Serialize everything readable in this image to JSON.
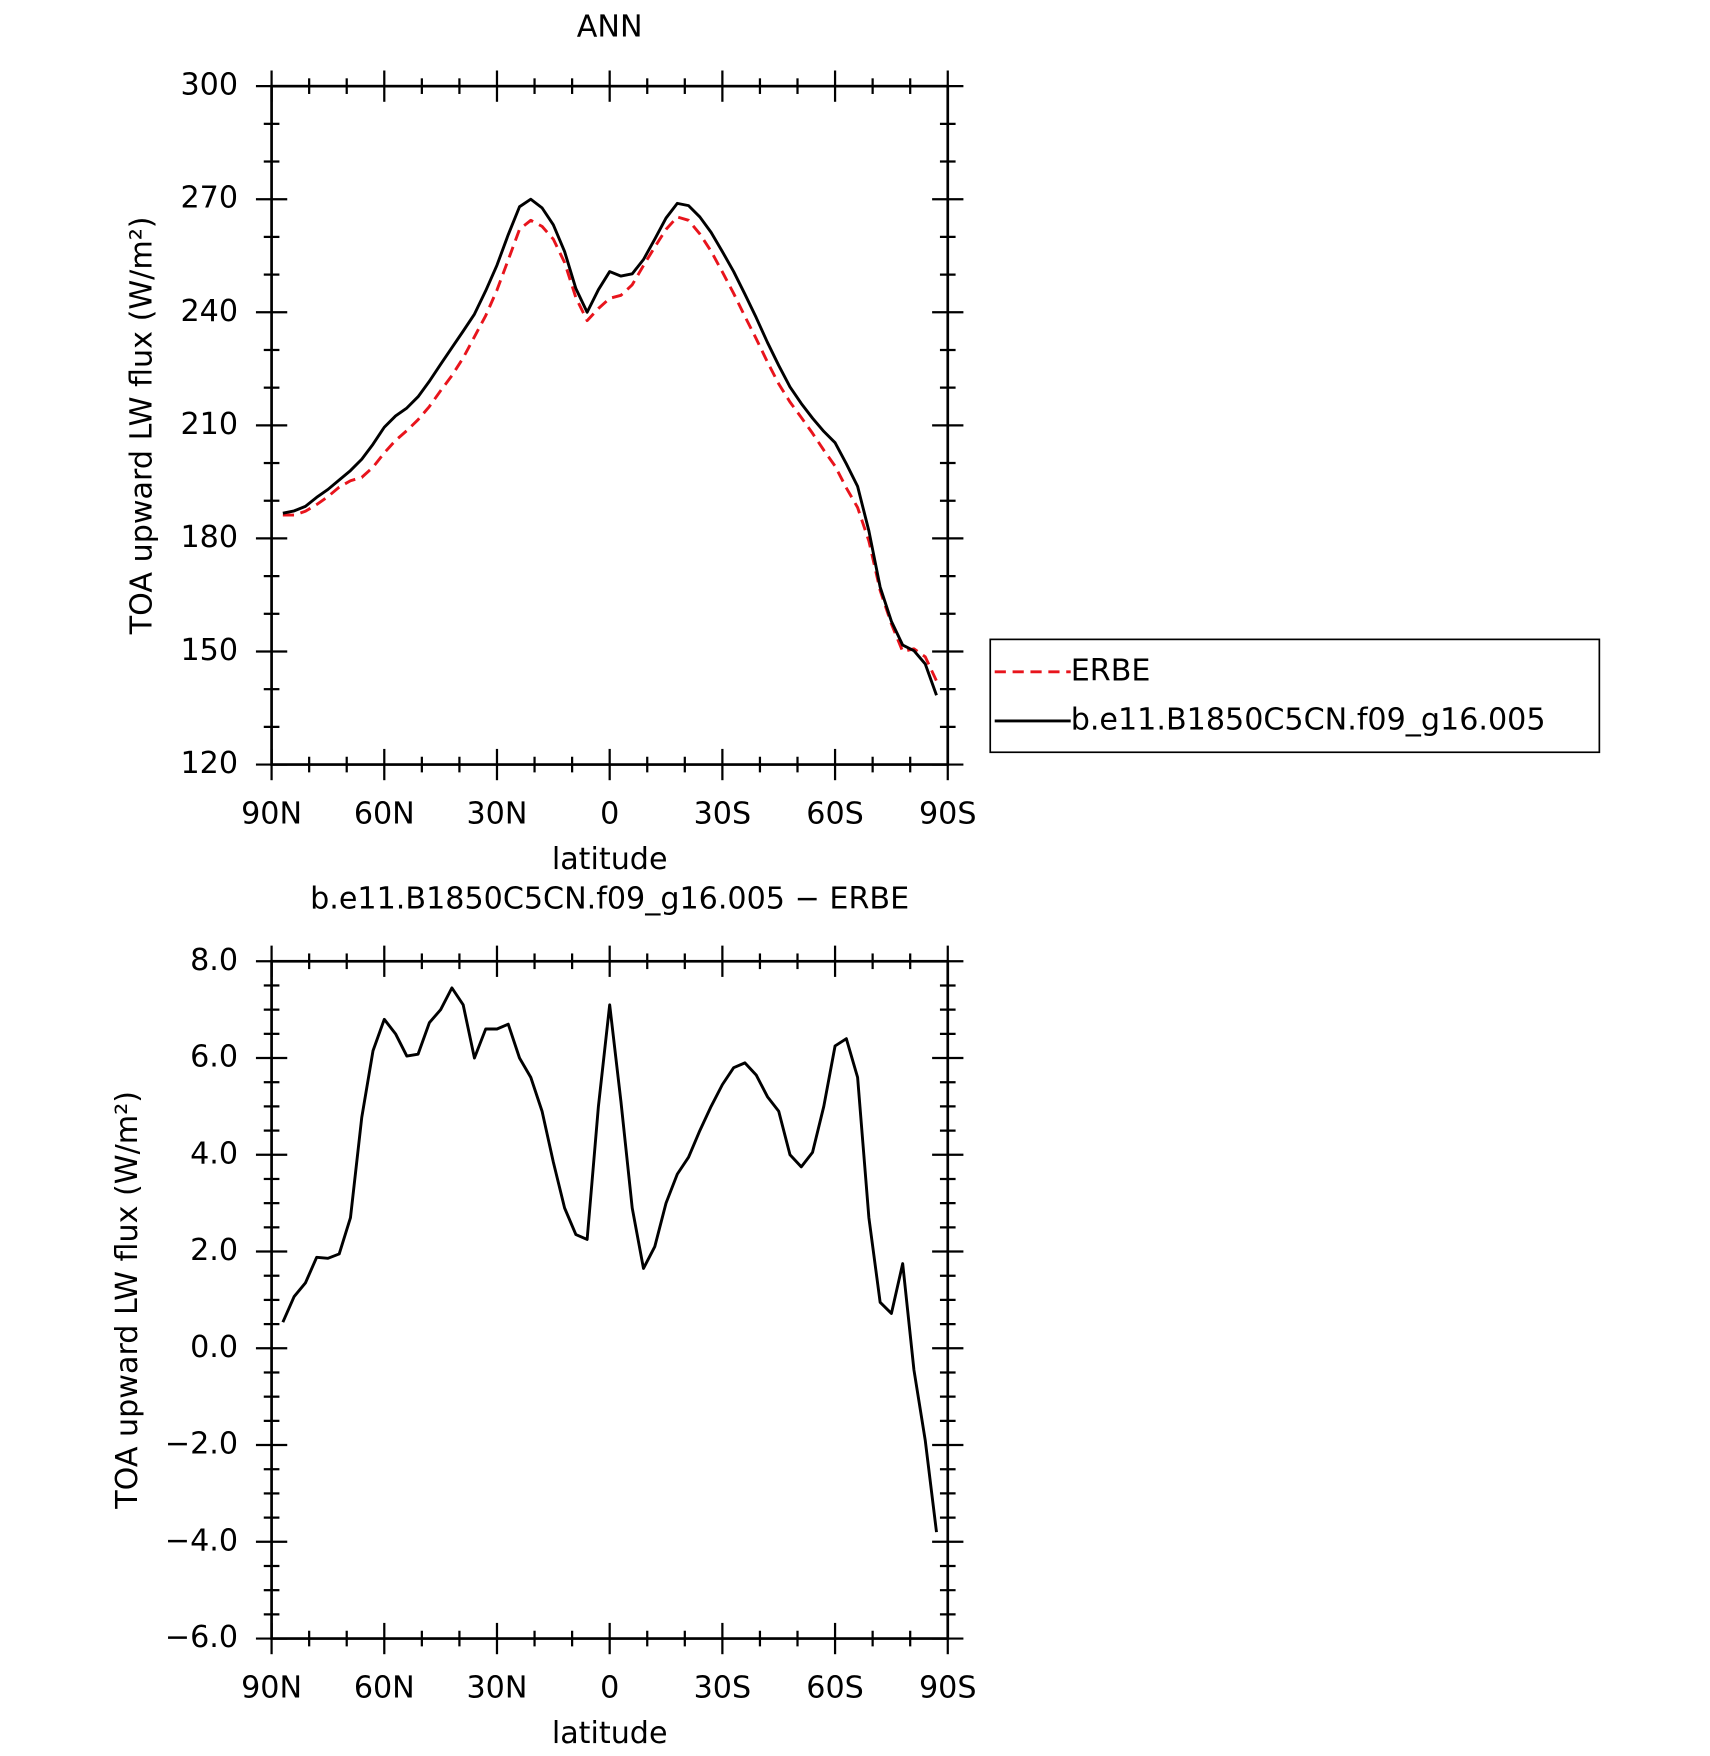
{
  "chart_data": [
    {
      "type": "line",
      "title": "ANN",
      "x_label": "latitude",
      "y_label": "TOA upward LW flux (W/m²)",
      "x": [
        87,
        84,
        81,
        78,
        75,
        72,
        69,
        66,
        63,
        60,
        57,
        54,
        51,
        48,
        45,
        42,
        39,
        36,
        33,
        30,
        27,
        24,
        21,
        18,
        15,
        12,
        9,
        6,
        3,
        0,
        -3,
        -6,
        -9,
        -12,
        -15,
        -18,
        -21,
        -24,
        -27,
        -30,
        -33,
        -36,
        -39,
        -42,
        -45,
        -48,
        -51,
        -54,
        -57,
        -60,
        -63,
        -66,
        -69,
        -72,
        -75,
        -78,
        -81,
        -84,
        -87
      ],
      "series": [
        {
          "name": "ERBE",
          "color": "#e8141c",
          "style": "dashed",
          "values": [
            186.2,
            186.2,
            187.2,
            189.0,
            191.1,
            193.6,
            195.3,
            196.2,
            198.9,
            202.7,
            206.0,
            208.6,
            211.5,
            215.0,
            219.2,
            223.2,
            227.9,
            233.5,
            239.1,
            245.9,
            253.9,
            262.0,
            264.4,
            262.8,
            259.4,
            253.2,
            243.9,
            237.8,
            241.0,
            243.7,
            244.5,
            247.3,
            252.4,
            257.3,
            262.0,
            265.3,
            264.4,
            260.8,
            256.2,
            250.7,
            245.0,
            238.9,
            233.0,
            226.8,
            221.0,
            216.2,
            212.1,
            207.9,
            203.4,
            199.2,
            193.4,
            188.2,
            179.3,
            166.2,
            157.3,
            150.0,
            150.7,
            148.6,
            142.2
          ]
        },
        {
          "name": "b.e11.B1850C5CN.f09_g16.005",
          "color": "#000000",
          "style": "solid",
          "values": [
            186.7,
            187.3,
            188.5,
            190.9,
            193,
            195.5,
            198,
            201,
            205,
            209.5,
            212.5,
            214.6,
            217.6,
            221.7,
            226.2,
            230.6,
            235,
            239.5,
            245.7,
            252.5,
            260.6,
            268,
            270,
            267.7,
            263.2,
            256.1,
            246.3,
            240,
            246,
            250.8,
            249.6,
            250.2,
            254,
            259.4,
            265,
            268.9,
            268.3,
            265.3,
            261.2,
            256.1,
            250.8,
            244.8,
            238.6,
            232,
            225.9,
            220.2,
            215.8,
            211.9,
            208.4,
            205.4,
            199.8,
            193.8,
            182,
            167.1,
            158,
            151.7,
            150.2,
            146.7,
            138.4
          ]
        }
      ],
      "xlim": [
        90,
        -90
      ],
      "xticks": [
        {
          "value": 90,
          "label": "90N"
        },
        {
          "value": 60,
          "label": "60N"
        },
        {
          "value": 30,
          "label": "30N"
        },
        0,
        {
          "value": -30,
          "label": "30S"
        },
        {
          "value": -60,
          "label": "60S"
        },
        {
          "value": -90,
          "label": "90S"
        }
      ],
      "ylim": [
        120,
        300
      ],
      "yticks": [
        120,
        150,
        180,
        210,
        240,
        270,
        300
      ],
      "legend": "right"
    },
    {
      "type": "line",
      "title": "b.e11.B1850C5CN.f09_g16.005 − ERBE",
      "x_label": "latitude",
      "y_label": "TOA upward LW flux (W/m²)",
      "x": [
        87,
        84,
        81,
        78,
        75,
        72,
        69,
        66,
        63,
        60,
        57,
        54,
        51,
        48,
        45,
        42,
        39,
        36,
        33,
        30,
        27,
        24,
        21,
        18,
        15,
        12,
        9,
        6,
        3,
        0,
        -3,
        -6,
        -9,
        -12,
        -15,
        -18,
        -21,
        -24,
        -27,
        -30,
        -33,
        -36,
        -39,
        -42,
        -45,
        -48,
        -51,
        -54,
        -57,
        -60,
        -63,
        -66,
        -69,
        -72,
        -75,
        -78,
        -81,
        -84,
        -87
      ],
      "color": "#000000",
      "values": [
        0.54,
        1.07,
        1.35,
        1.88,
        1.86,
        1.95,
        2.7,
        4.77,
        6.15,
        6.8,
        6.5,
        6.04,
        6.08,
        6.73,
        7.0,
        7.45,
        7.1,
        6.0,
        6.6,
        6.6,
        6.7,
        6.0,
        5.6,
        4.9,
        3.85,
        2.9,
        2.35,
        2.25,
        5.0,
        7.1,
        5.1,
        2.9,
        1.65,
        2.1,
        3.0,
        3.6,
        3.95,
        4.5,
        5.0,
        5.45,
        5.8,
        5.9,
        5.65,
        5.2,
        4.9,
        4.0,
        3.75,
        4.05,
        5.0,
        6.25,
        6.4,
        5.6,
        2.7,
        0.95,
        0.72,
        1.75,
        -0.45,
        -1.9,
        -3.8
      ],
      "xlim": [
        90,
        -90
      ],
      "xticks": [
        {
          "value": 90,
          "label": "90N"
        },
        {
          "value": 60,
          "label": "60N"
        },
        {
          "value": 30,
          "label": "30N"
        },
        0,
        {
          "value": -30,
          "label": "30S"
        },
        {
          "value": -60,
          "label": "60S"
        },
        {
          "value": -90,
          "label": "90S"
        }
      ],
      "ylim": [
        -6,
        8
      ],
      "yticks": [
        {
          "value": -6,
          "label": "−6.0"
        },
        {
          "value": -4,
          "label": "−4.0"
        },
        {
          "value": -2,
          "label": "−2.0"
        },
        {
          "value": 0,
          "label": "0.0"
        },
        {
          "value": 2,
          "label": "2.0"
        },
        {
          "value": 4,
          "label": "4.0"
        },
        {
          "value": 6,
          "label": "6.0"
        },
        {
          "value": 8,
          "label": "8.0"
        }
      ]
    }
  ]
}
